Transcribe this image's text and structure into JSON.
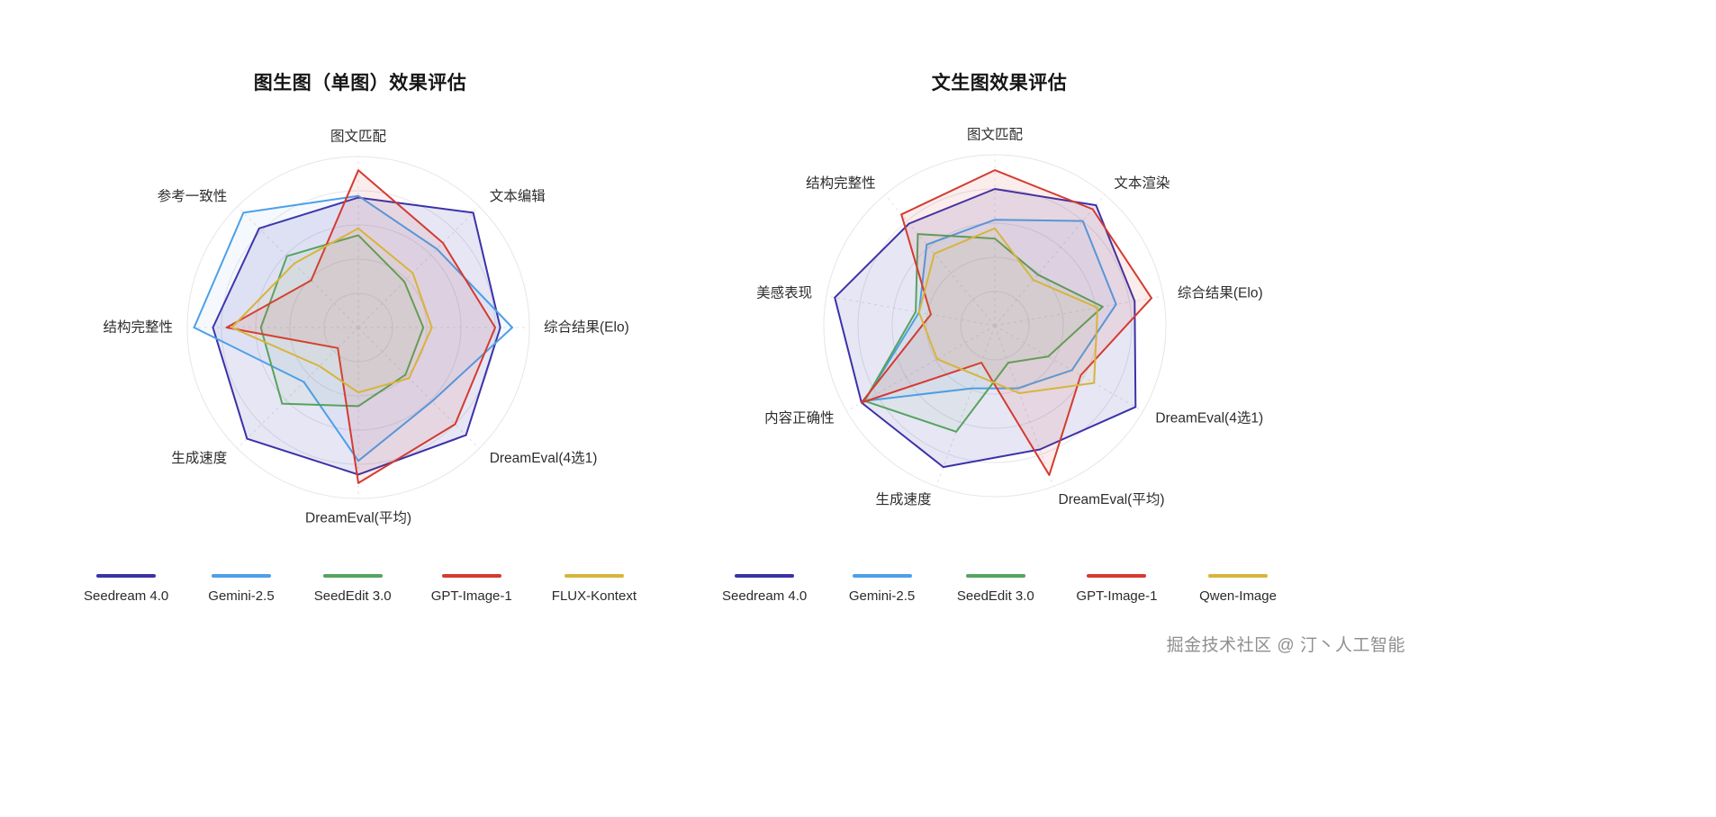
{
  "page": {
    "watermark": "掘金技术社区 @ 汀丶人工智能",
    "background": "#ffffff"
  },
  "chart_data": [
    {
      "type": "radar",
      "title": "图生图（单图）效果评估",
      "axes": [
        "图文匹配",
        "文本编辑",
        "综合结果(Elo)",
        "DreamEval(4选1)",
        "DreamEval(平均)",
        "生成速度",
        "结构完整性",
        "参考一致性"
      ],
      "rmax": 100,
      "rings": 5,
      "grid_shape": "circle",
      "legend_position": "bottom",
      "series": [
        {
          "name": "Seedream 4.0",
          "color": "#3b32a8",
          "fill_opacity": 0.12,
          "values": [
            76,
            95,
            83,
            89,
            86,
            92,
            85,
            82
          ]
        },
        {
          "name": "Gemini-2.5",
          "color": "#4d9fe8",
          "fill_opacity": 0.06,
          "values": [
            77,
            65,
            90,
            61,
            78,
            45,
            96,
            95
          ]
        },
        {
          "name": "SeedEdit 3.0",
          "color": "#55a35f",
          "fill_opacity": 0.06,
          "values": [
            54,
            38,
            38,
            39,
            46,
            63,
            57,
            59
          ]
        },
        {
          "name": "GPT-Image-1",
          "color": "#d43b2f",
          "fill_opacity": 0.09,
          "values": [
            92,
            70,
            80,
            80,
            91,
            17,
            77,
            39
          ]
        },
        {
          "name": "FLUX-Kontext",
          "color": "#d8b43c",
          "fill_opacity": 0.06,
          "values": [
            58,
            45,
            43,
            42,
            38,
            32,
            74,
            53
          ]
        }
      ]
    },
    {
      "type": "radar",
      "title": "文生图效果评估",
      "axes": [
        "图文匹配",
        "文本渲染",
        "综合结果(Elo)",
        "DreamEval(4选1)",
        "DreamEval(平均)",
        "生成速度",
        "内容正确性",
        "美感表现",
        "结构完整性"
      ],
      "rmax": 100,
      "rings": 5,
      "grid_shape": "circle",
      "legend_position": "bottom",
      "series": [
        {
          "name": "Seedream 4.0",
          "color": "#3b32a8",
          "fill_opacity": 0.12,
          "values": [
            80,
            92,
            83,
            95,
            77,
            88,
            90,
            95,
            78
          ]
        },
        {
          "name": "Gemini-2.5",
          "color": "#4d9fe8",
          "fill_opacity": 0.06,
          "values": [
            62,
            80,
            72,
            52,
            39,
            39,
            88,
            45,
            62
          ]
        },
        {
          "name": "SeedEdit 3.0",
          "color": "#55a35f",
          "fill_opacity": 0.06,
          "values": [
            51,
            39,
            64,
            36,
            23,
            66,
            88,
            47,
            70
          ]
        },
        {
          "name": "GPT-Image-1",
          "color": "#d43b2f",
          "fill_opacity": 0.09,
          "values": [
            91,
            89,
            93,
            58,
            93,
            23,
            90,
            38,
            85
          ]
        },
        {
          "name": "Qwen-Image",
          "color": "#d8b43c",
          "fill_opacity": 0.06,
          "values": [
            57,
            35,
            61,
            67,
            42,
            31,
            39,
            45,
            55
          ]
        }
      ]
    }
  ]
}
